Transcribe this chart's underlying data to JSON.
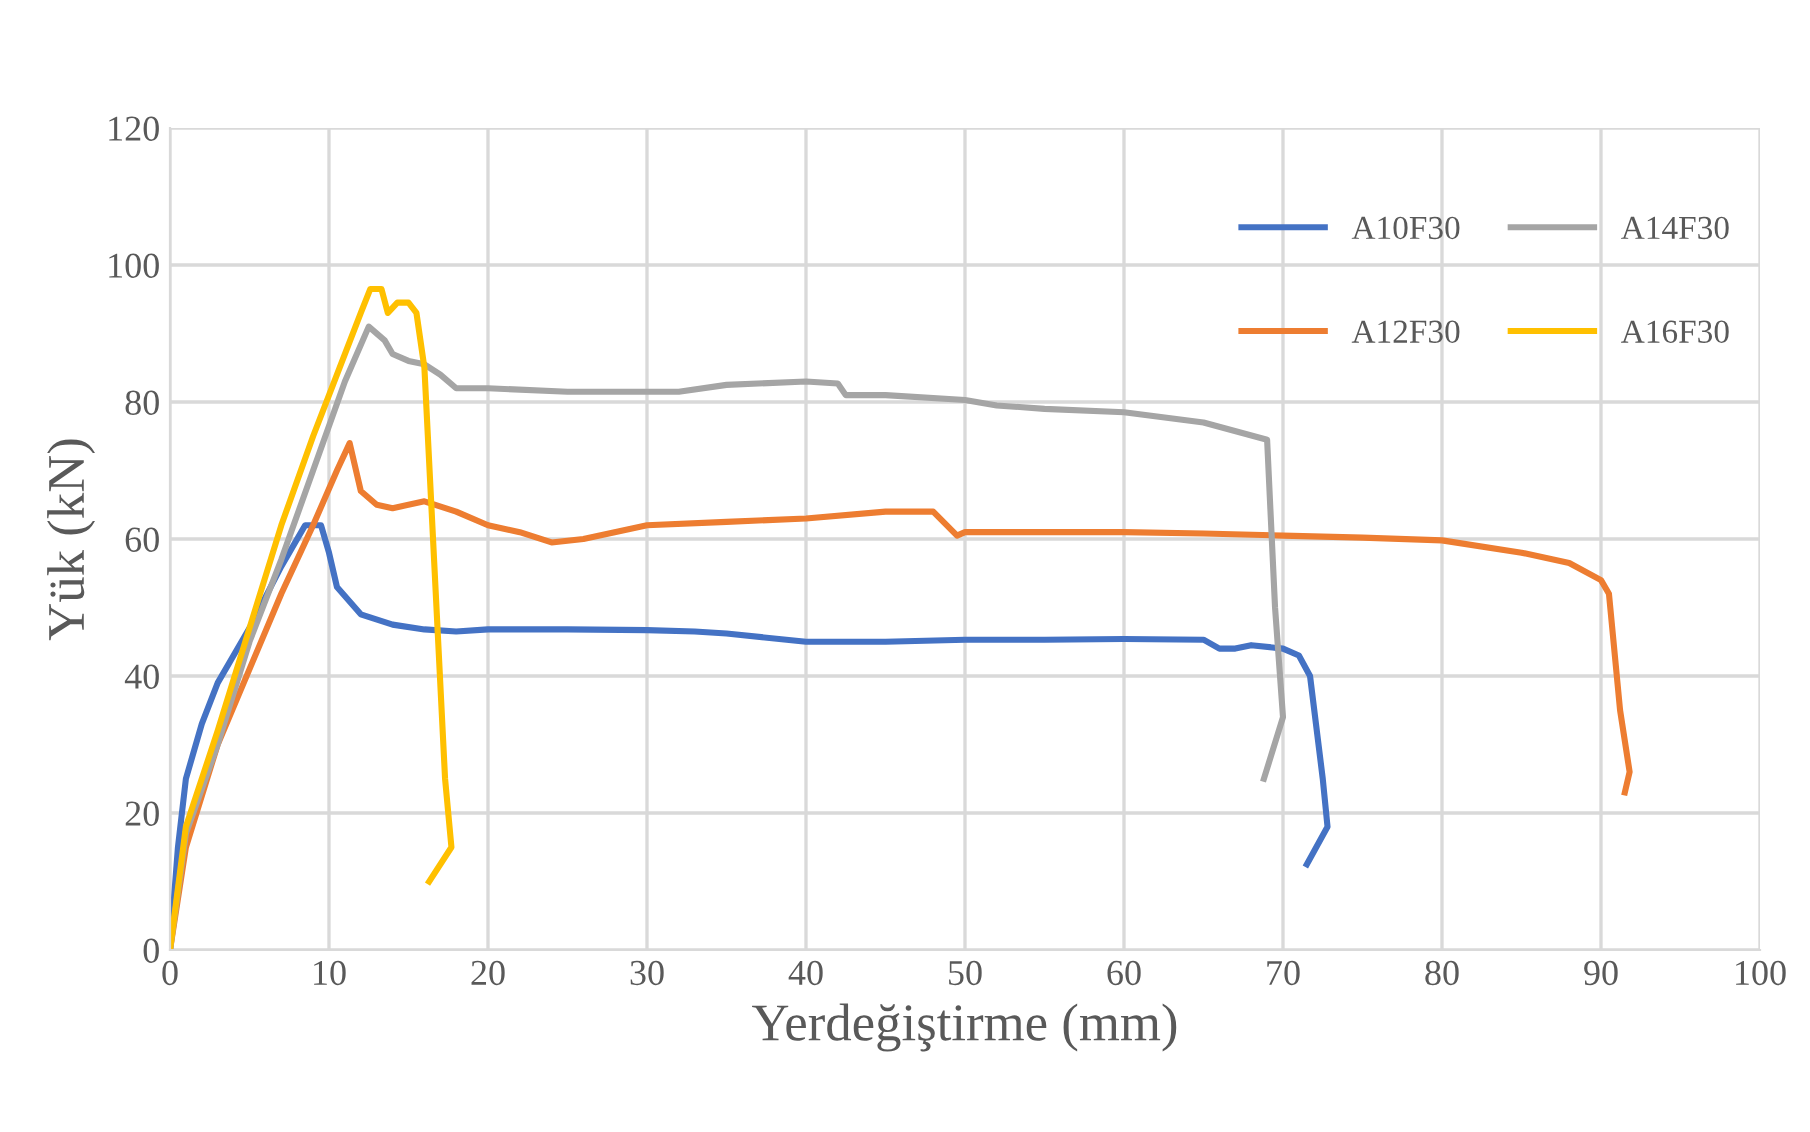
{
  "chart_data": {
    "type": "line",
    "xlabel": "Yerdeğiştirme (mm)",
    "ylabel": "Yük (kN)",
    "xlim": [
      0,
      100
    ],
    "xticks": [
      0,
      10,
      20,
      30,
      40,
      50,
      60,
      70,
      80,
      90,
      100
    ],
    "ylim": [
      0,
      120
    ],
    "yticks": [
      0,
      20,
      40,
      60,
      80,
      100,
      120
    ],
    "grid": true,
    "legend": "top right",
    "marker": "none",
    "series": [
      {
        "name": "A10F30",
        "color": "#4472c4",
        "x": [
          0,
          0.5,
          1,
          2,
          3,
          5,
          7,
          8.5,
          9.5,
          10,
          10.5,
          12,
          14,
          16,
          18,
          20,
          25,
          30,
          33,
          35,
          40,
          45,
          50,
          55,
          60,
          65,
          66,
          67,
          68,
          70,
          71,
          71.7,
          72.5,
          72.8,
          71.5
        ],
        "values": [
          0,
          15,
          25,
          33,
          39,
          47,
          56,
          62,
          62,
          58,
          53,
          49,
          47.5,
          46.8,
          46.5,
          46.8,
          46.8,
          46.7,
          46.5,
          46.2,
          45,
          45,
          45.3,
          45.3,
          45.4,
          45.3,
          44,
          44,
          44.5,
          44,
          43,
          40,
          25,
          18,
          12.5
        ]
      },
      {
        "name": "A12F30",
        "color": "#ed7d31",
        "x": [
          0,
          1,
          3,
          5,
          7,
          9,
          10.5,
          11.3,
          12,
          13,
          14,
          16,
          18,
          20,
          22,
          24,
          26,
          30,
          35,
          40,
          45,
          48,
          49.5,
          50,
          55,
          60,
          65,
          70,
          75,
          80,
          85,
          88,
          90,
          90.5,
          91.2,
          91.8,
          91.5
        ],
        "values": [
          0,
          15,
          30,
          41,
          52,
          62,
          70,
          74,
          67,
          65,
          64.5,
          65.5,
          64,
          62,
          61,
          59.5,
          60,
          62,
          62.5,
          63,
          64,
          64,
          60.5,
          61,
          61,
          61,
          60.8,
          60.5,
          60.2,
          59.8,
          58,
          56.5,
          54,
          52,
          35,
          26,
          23
        ]
      },
      {
        "name": "A14F30",
        "color": "#a5a5a5",
        "x": [
          0,
          1,
          3,
          5,
          7,
          9,
          11,
          12.5,
          13.5,
          14,
          15,
          16,
          17,
          18,
          20,
          25,
          30,
          32,
          35,
          40,
          42,
          42.5,
          45,
          50,
          52,
          55,
          60,
          65,
          69,
          69.5,
          70,
          68.8
        ],
        "values": [
          0,
          17,
          30,
          45,
          57,
          70,
          83,
          91,
          89,
          87,
          86,
          85.5,
          84,
          82,
          82,
          81.5,
          81.5,
          81.5,
          82.5,
          83,
          82.7,
          81,
          81,
          80.3,
          79.5,
          79,
          78.5,
          77,
          74.5,
          50,
          34,
          25
        ]
      },
      {
        "name": "A16F30",
        "color": "#ffc000",
        "x": [
          0,
          1,
          3,
          5,
          7,
          9,
          10.5,
          12,
          12.6,
          13.3,
          13.7,
          14.3,
          15,
          15.5,
          16,
          16.5,
          17.3,
          17.7,
          16.3
        ],
        "values": [
          0,
          18,
          32,
          47,
          62,
          75,
          84,
          93,
          96.5,
          96.5,
          93,
          94.5,
          94.5,
          93,
          85,
          62,
          25,
          15,
          10
        ]
      }
    ]
  }
}
